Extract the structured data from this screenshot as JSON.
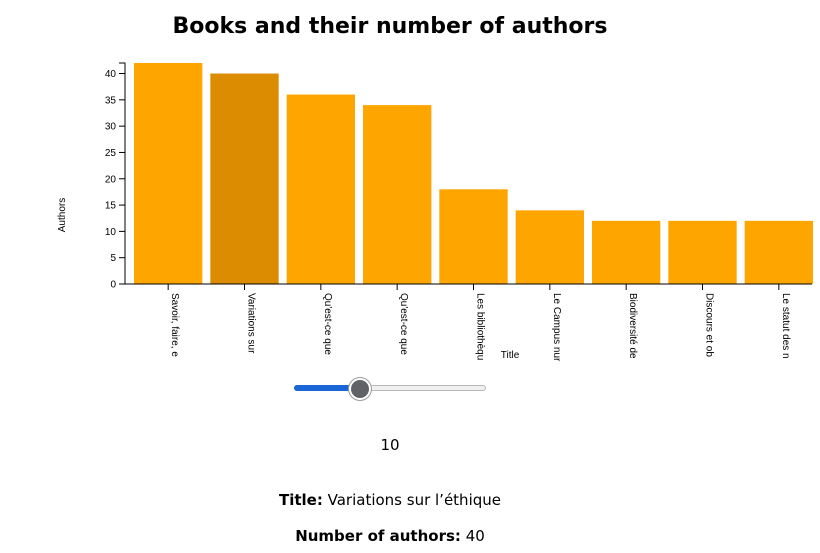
{
  "chart_data": {
    "type": "bar",
    "title": "Books and their number of authors",
    "xlabel": "Title",
    "ylabel": "Authors",
    "ylim": [
      0,
      42
    ],
    "yticks": [
      0,
      5,
      10,
      15,
      20,
      25,
      30,
      35,
      40
    ],
    "categories": [
      "Savoir, faire, e",
      "Variations sur",
      "Qu'est-ce que",
      "Qu'est-ce que",
      "Les bibliothèqu",
      "Le Campus nur",
      "Biodiversité de",
      "Discours et ob",
      "Le statut des n"
    ],
    "values": [
      42,
      40,
      36,
      34,
      18,
      14,
      12,
      12,
      12
    ],
    "highlighted_index": 1,
    "colors": {
      "bar": "#ffa500",
      "highlight": "#dc8c00"
    }
  },
  "slider": {
    "value": 10,
    "min": 0,
    "max": 42,
    "display": "10",
    "accent": "#1a66d6"
  },
  "details": {
    "title_label": "Title:",
    "title_value": "Variations sur l’éthique",
    "authors_label": "Number of authors:",
    "authors_value": "40"
  }
}
